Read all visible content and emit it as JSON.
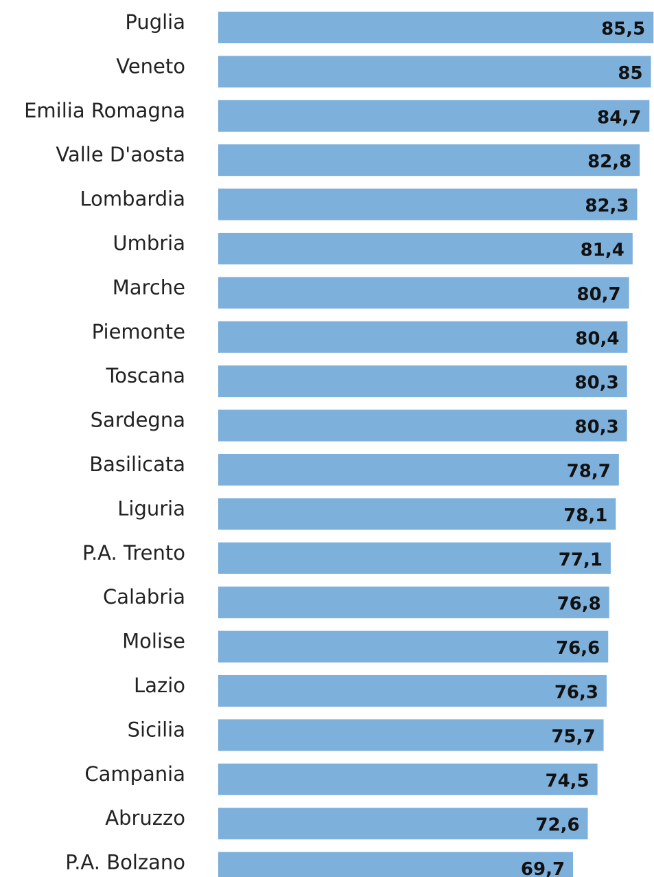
{
  "chart_data": {
    "type": "barh",
    "categories": [
      "Puglia",
      "Veneto",
      "Emilia Romagna",
      "Valle D'aosta",
      "Lombardia",
      "Umbria",
      "Marche",
      "Piemonte",
      "Toscana",
      "Sardegna",
      "Basilicata",
      "Liguria",
      "P.A. Trento",
      "Calabria",
      "Molise",
      "Lazio",
      "Sicilia",
      "Campania",
      "Abruzzo",
      "P.A. Bolzano"
    ],
    "values": [
      85.5,
      85,
      84.7,
      82.8,
      82.3,
      81.4,
      80.7,
      80.4,
      80.3,
      80.3,
      78.7,
      78.1,
      77.1,
      76.8,
      76.6,
      76.3,
      75.7,
      74.5,
      72.6,
      69.7
    ],
    "value_labels": [
      "85,5",
      "85",
      "84,7",
      "82,8",
      "82,3",
      "81,4",
      "80,7",
      "80,4",
      "80,3",
      "80,3",
      "78,7",
      "78,1",
      "77,1",
      "76,8",
      "76,6",
      "76,3",
      "75,7",
      "74,5",
      "72,6",
      "69,7"
    ],
    "color": "#7eb0dc",
    "xlim": [
      0,
      85.6
    ]
  }
}
